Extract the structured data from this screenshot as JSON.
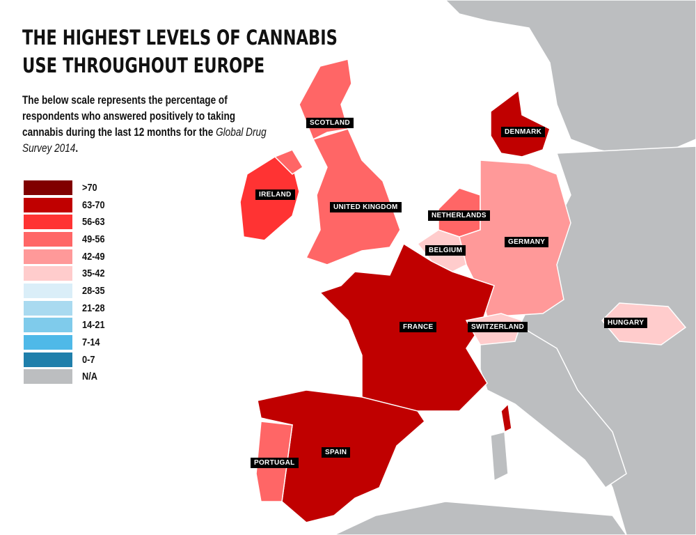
{
  "title": "THE HIGHEST LEVELS OF CANNABIS USE THROUGHOUT EUROPE",
  "description": {
    "text": "The below scale represents the percentage of respondents who answered positively to taking cannabis during the last 12 months for the ",
    "source": "Global Drug Survey 2014",
    "end": "."
  },
  "legend": [
    {
      "label": ">70",
      "color": "#800000"
    },
    {
      "label": "63-70",
      "color": "#c00000"
    },
    {
      "label": "56-63",
      "color": "#ff3333"
    },
    {
      "label": "49-56",
      "color": "#ff6666"
    },
    {
      "label": "42-49",
      "color": "#ff9999"
    },
    {
      "label": "35-42",
      "color": "#ffcccc"
    },
    {
      "label": "28-35",
      "color": "#daeef8"
    },
    {
      "label": "21-28",
      "color": "#a9daf0"
    },
    {
      "label": "14-21",
      "color": "#7fcbeb"
    },
    {
      "label": "7-14",
      "color": "#4fb9e8"
    },
    {
      "label": "0-7",
      "color": "#1f7fab"
    },
    {
      "label": "N/A",
      "color": "#bcbec0"
    }
  ],
  "countries": [
    {
      "name": "SCOTLAND",
      "range": "49-56"
    },
    {
      "name": "IRELAND",
      "range": "56-63"
    },
    {
      "name": "UNITED KINGDOM",
      "range": "49-56"
    },
    {
      "name": "NETHERLANDS",
      "range": "49-56"
    },
    {
      "name": "BELGIUM",
      "range": "35-42"
    },
    {
      "name": "GERMANY",
      "range": "42-49"
    },
    {
      "name": "DENMARK",
      "range": "63-70"
    },
    {
      "name": "FRANCE",
      "range": "63-70"
    },
    {
      "name": "SWITZERLAND",
      "range": "35-42"
    },
    {
      "name": "HUNGARY",
      "range": "35-42"
    },
    {
      "name": "SPAIN",
      "range": "63-70"
    },
    {
      "name": "PORTUGAL",
      "range": "49-56"
    }
  ]
}
